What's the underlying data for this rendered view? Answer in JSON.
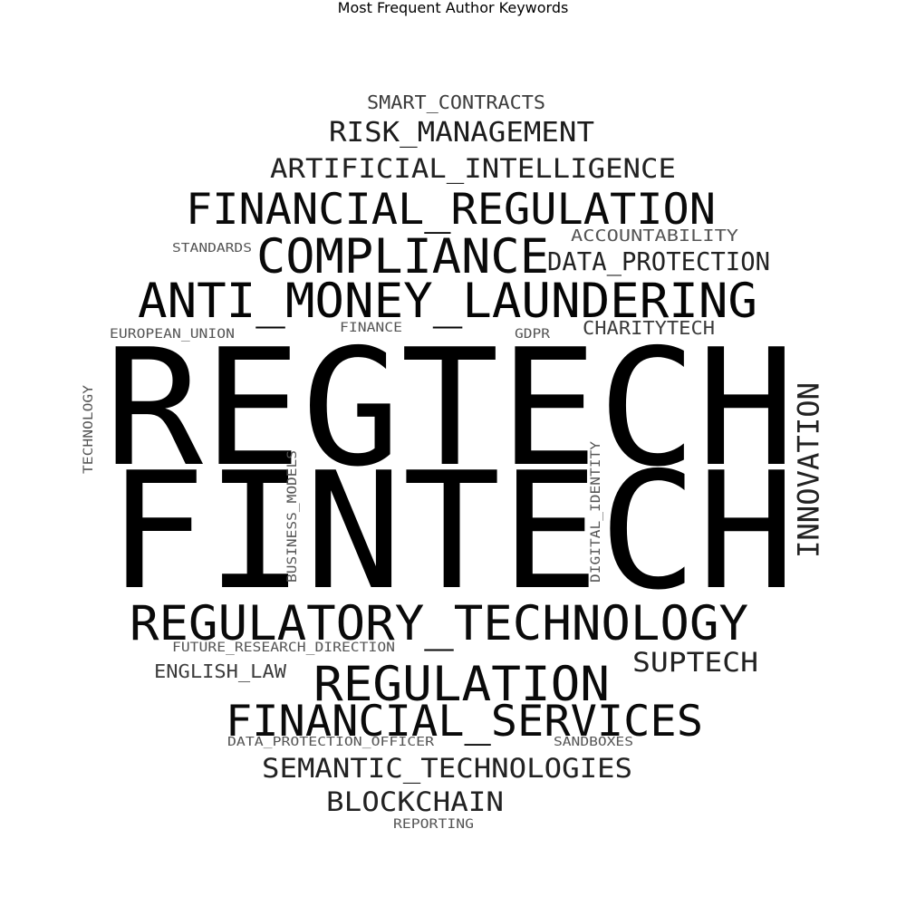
{
  "title": "Most Frequent Author Keywords",
  "keywords": [
    {
      "text": "SMART_CONTRACTS",
      "weight": 1,
      "color": "#3c3c3c"
    },
    {
      "text": "RISK_MANAGEMENT",
      "weight": 3,
      "color": "#1c1c1c"
    },
    {
      "text": "ARTIFICIAL_INTELLIGENCE",
      "weight": 2,
      "color": "#222222"
    },
    {
      "text": "FINANCIAL_REGULATION",
      "weight": 5,
      "color": "#0a0a0a"
    },
    {
      "text": "ACCOUNTABILITY",
      "weight": 1,
      "color": "#555555"
    },
    {
      "text": "STANDARDS",
      "weight": 1,
      "color": "#555555"
    },
    {
      "text": "COMPLIANCE",
      "weight": 6,
      "color": "#0a0a0a"
    },
    {
      "text": "DATA_PROTECTION",
      "weight": 2,
      "color": "#222222"
    },
    {
      "text": "ANTI_MONEY_LAUNDERING",
      "weight": 6,
      "color": "#050505"
    },
    {
      "text": "EUROPEAN_UNION",
      "weight": 1,
      "color": "#555555"
    },
    {
      "text": "FINANCE",
      "weight": 1,
      "color": "#555555"
    },
    {
      "text": "GDPR",
      "weight": 1,
      "color": "#555555"
    },
    {
      "text": "CHARITYTECH",
      "weight": 1,
      "color": "#3c3c3c"
    },
    {
      "text": "REGTECH",
      "weight": 10,
      "color": "#000000"
    },
    {
      "text": "FINTECH",
      "weight": 10,
      "color": "#000000"
    },
    {
      "text": "TECHNOLOGY",
      "weight": 1,
      "color": "#555555"
    },
    {
      "text": "BUSINESS_MODELS",
      "weight": 1,
      "color": "#555555"
    },
    {
      "text": "DIGITAL_IDENTITY",
      "weight": 1,
      "color": "#555555"
    },
    {
      "text": "INNOVATION",
      "weight": 3,
      "color": "#222222"
    },
    {
      "text": "REGULATORY_TECHNOLOGY",
      "weight": 6,
      "color": "#0a0a0a"
    },
    {
      "text": "FUTURE_RESEARCH_DIRECTION",
      "weight": 1,
      "color": "#555555"
    },
    {
      "text": "ENGLISH_LAW",
      "weight": 1,
      "color": "#3c3c3c"
    },
    {
      "text": "SUPTECH",
      "weight": 2,
      "color": "#222222"
    },
    {
      "text": "REGULATION",
      "weight": 6,
      "color": "#0a0a0a"
    },
    {
      "text": "FINANCIAL_SERVICES",
      "weight": 6,
      "color": "#0a0a0a"
    },
    {
      "text": "DATA_PROTECTION_OFFICER",
      "weight": 1,
      "color": "#555555"
    },
    {
      "text": "SANDBOXES",
      "weight": 1,
      "color": "#555555"
    },
    {
      "text": "SEMANTIC_TECHNOLOGIES",
      "weight": 2,
      "color": "#222222"
    },
    {
      "text": "BLOCKCHAIN",
      "weight": 2,
      "color": "#222222"
    },
    {
      "text": "REPORTING",
      "weight": 1,
      "color": "#555555"
    }
  ]
}
